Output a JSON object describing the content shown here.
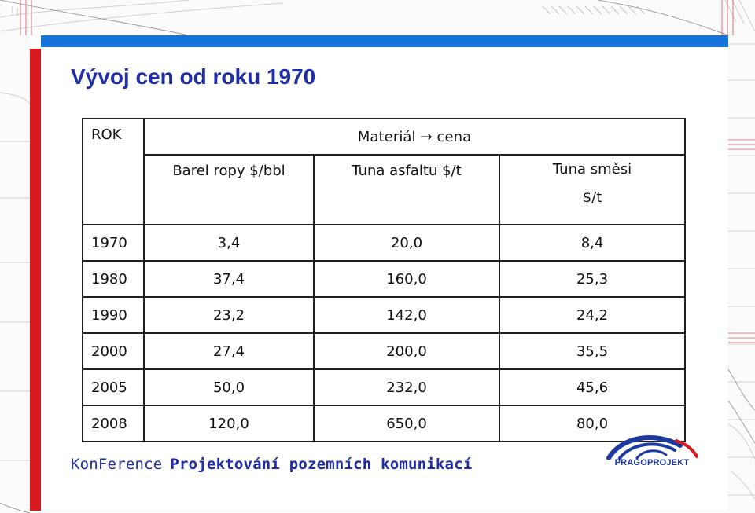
{
  "slide": {
    "title": "Vývoj cen od roku 1970",
    "colors": {
      "title": "#1f2da8",
      "left_bar": "#d71920",
      "top_bar": "#1673d9",
      "table_border": "#202020",
      "footer": "#1f2da8",
      "logo": "#1d3aa0"
    }
  },
  "table": {
    "year_header": "ROK",
    "group_header": "Materiál → cena",
    "columns": [
      "Barel ropy $/bbl",
      "Tuna asfaltu $/t",
      "Tuna směsi"
    ],
    "mix_unit": "$/t",
    "rows": [
      {
        "year": "1970",
        "oil": "3,4",
        "asphalt": "20,0",
        "mix": "8,4"
      },
      {
        "year": "1980",
        "oil": "37,4",
        "asphalt": "160,0",
        "mix": "25,3"
      },
      {
        "year": "1990",
        "oil": "23,2",
        "asphalt": "142,0",
        "mix": "24,2"
      },
      {
        "year": "2000",
        "oil": "27,4",
        "asphalt": "200,0",
        "mix": "35,5"
      },
      {
        "year": "2005",
        "oil": "50,0",
        "asphalt": "232,0",
        "mix": "45,6"
      },
      {
        "year": "2008",
        "oil": "120,0",
        "asphalt": "650,0",
        "mix": "80,0"
      }
    ]
  },
  "footer": {
    "prefix": "KonFerence",
    "title": "Projektování pozemních komunikací"
  },
  "logo": {
    "text": "PRAGOPROJEKT",
    "icon": "bridge-logo-icon"
  }
}
